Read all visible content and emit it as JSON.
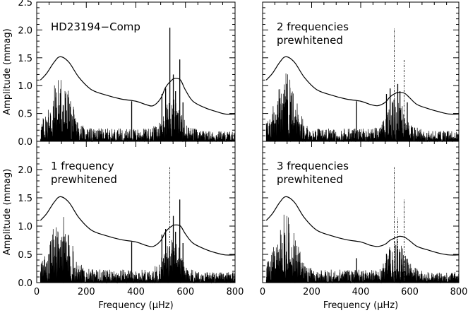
{
  "chart_data": [
    {
      "type": "line",
      "panel": "HD23194-Comp",
      "label_lines": [
        "HD23194−Comp"
      ],
      "xlim": [
        0,
        800
      ],
      "ylim": [
        0,
        2.5
      ],
      "xticks": [
        0,
        200,
        400,
        600,
        800
      ],
      "yticks": [
        0.0,
        0.5,
        1.0,
        1.5,
        2.0,
        2.5
      ],
      "ytick_labels": [
        "0.0",
        "0.5",
        "1.0",
        "1.5",
        "2.0",
        "2.5"
      ],
      "xlabel": "",
      "ylabel": "Amplitude (mmag)",
      "peaks": [
        {
          "x": 537,
          "y": 2.04
        },
        {
          "x": 577,
          "y": 1.47
        },
        {
          "x": 551,
          "y": 1.2
        }
      ],
      "removed_peaks": [],
      "envelope": {
        "x": [
          15,
          40,
          70,
          95,
          130,
          170,
          220,
          280,
          340,
          400,
          440,
          470,
          500,
          520,
          545,
          560,
          580,
          600,
          630,
          680,
          720,
          760,
          800
        ],
        "y": [
          1.1,
          1.22,
          1.42,
          1.52,
          1.42,
          1.15,
          0.93,
          0.83,
          0.76,
          0.72,
          0.66,
          0.64,
          0.77,
          0.97,
          1.1,
          1.13,
          1.1,
          0.92,
          0.72,
          0.6,
          0.54,
          0.49,
          0.49
        ]
      }
    },
    {
      "type": "line",
      "panel": "2 frequencies prewhitened",
      "label_lines": [
        "2 frequencies",
        "prewhitened"
      ],
      "xlim": [
        0,
        800
      ],
      "ylim": [
        0,
        2.5
      ],
      "xticks": [
        0,
        200,
        400,
        600,
        800
      ],
      "yticks": [
        0.0,
        0.5,
        1.0,
        1.5,
        2.0,
        2.5
      ],
      "ytick_labels": [
        "",
        "",
        "",
        "",
        "",
        ""
      ],
      "xlabel": "",
      "ylabel": "",
      "peaks": [
        {
          "x": 551,
          "y": 1.03
        }
      ],
      "removed_peaks": [
        {
          "x": 537,
          "y": 2.04
        },
        {
          "x": 577,
          "y": 1.47
        }
      ],
      "envelope": {
        "x": [
          15,
          40,
          70,
          95,
          130,
          170,
          220,
          280,
          340,
          400,
          440,
          470,
          500,
          520,
          545,
          560,
          580,
          600,
          630,
          680,
          720,
          760,
          800
        ],
        "y": [
          1.1,
          1.22,
          1.42,
          1.52,
          1.42,
          1.15,
          0.93,
          0.83,
          0.76,
          0.72,
          0.66,
          0.64,
          0.7,
          0.8,
          0.87,
          0.88,
          0.86,
          0.78,
          0.66,
          0.58,
          0.53,
          0.49,
          0.49
        ]
      }
    },
    {
      "type": "line",
      "panel": "1 frequency prewhitened",
      "label_lines": [
        "1 frequency",
        "prewhitened"
      ],
      "xlim": [
        0,
        800
      ],
      "ylim": [
        0,
        2.5
      ],
      "xticks": [
        0,
        200,
        400,
        600,
        800
      ],
      "xtick_labels": [
        "0",
        "200",
        "400",
        "600",
        "800"
      ],
      "yticks": [
        0.0,
        0.5,
        1.0,
        1.5,
        2.0,
        2.5
      ],
      "ytick_labels": [
        "0.0",
        "0.5",
        "1.0",
        "1.5",
        "2.0",
        ""
      ],
      "xlabel": "Frequency (μHz)",
      "ylabel": "Amplitude (mmag)",
      "peaks": [
        {
          "x": 577,
          "y": 1.47
        },
        {
          "x": 551,
          "y": 1.18
        }
      ],
      "removed_peaks": [
        {
          "x": 537,
          "y": 2.04
        }
      ],
      "envelope": {
        "x": [
          15,
          40,
          70,
          95,
          130,
          170,
          220,
          280,
          340,
          400,
          440,
          470,
          500,
          520,
          545,
          560,
          580,
          600,
          630,
          680,
          720,
          760,
          800
        ],
        "y": [
          1.1,
          1.22,
          1.42,
          1.52,
          1.42,
          1.15,
          0.93,
          0.83,
          0.76,
          0.72,
          0.66,
          0.64,
          0.74,
          0.9,
          1.0,
          1.02,
          1.0,
          0.86,
          0.7,
          0.59,
          0.53,
          0.49,
          0.49
        ]
      }
    },
    {
      "type": "line",
      "panel": "3 frequencies prewhitened",
      "label_lines": [
        "3 frequencies",
        "prewhitened"
      ],
      "xlim": [
        0,
        800
      ],
      "ylim": [
        0,
        2.5
      ],
      "xticks": [
        0,
        200,
        400,
        600,
        800
      ],
      "xtick_labels": [
        "0",
        "200",
        "400",
        "600",
        "800"
      ],
      "yticks": [
        0.0,
        0.5,
        1.0,
        1.5,
        2.0,
        2.5
      ],
      "ytick_labels": [
        "",
        "",
        "",
        "",
        "",
        ""
      ],
      "xlabel": "Frequency (μHz)",
      "ylabel": "",
      "peaks": [],
      "removed_peaks": [
        {
          "x": 537,
          "y": 2.04
        },
        {
          "x": 577,
          "y": 1.47
        },
        {
          "x": 551,
          "y": 1.15
        }
      ],
      "envelope": {
        "x": [
          15,
          40,
          70,
          95,
          130,
          170,
          220,
          280,
          340,
          400,
          440,
          470,
          500,
          520,
          545,
          560,
          580,
          600,
          630,
          680,
          720,
          760,
          800
        ],
        "y": [
          1.1,
          1.22,
          1.42,
          1.52,
          1.42,
          1.15,
          0.93,
          0.83,
          0.76,
          0.72,
          0.66,
          0.64,
          0.68,
          0.75,
          0.8,
          0.82,
          0.8,
          0.74,
          0.64,
          0.57,
          0.52,
          0.49,
          0.49
        ]
      }
    }
  ]
}
